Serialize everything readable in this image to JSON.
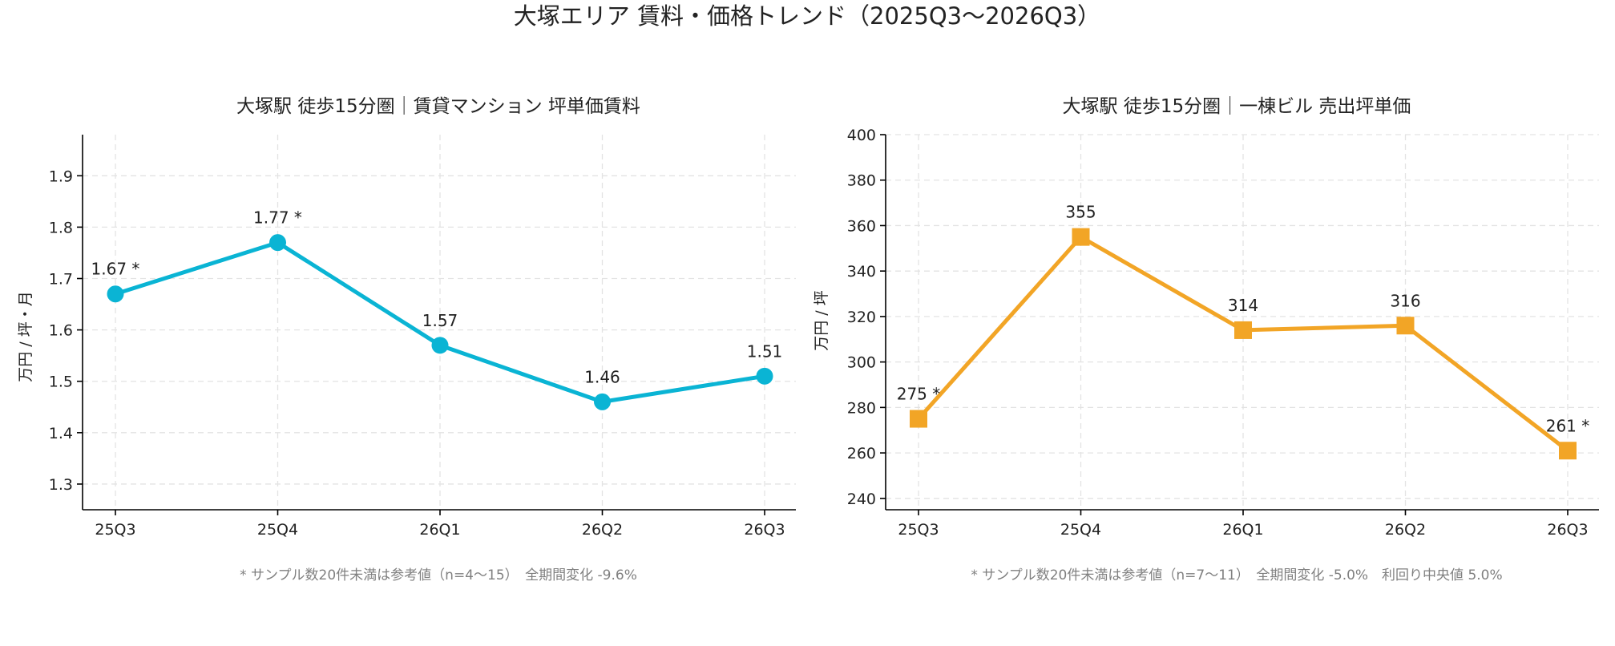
{
  "figure": {
    "title": "大塚エリア 賃料・価格トレンド（2025Q3〜2026Q3）"
  },
  "chart_data": [
    {
      "type": "line",
      "title": "大塚駅 徒歩15分圏｜賃貸マンション 坪単価賃料",
      "xlabel": "",
      "ylabel": "万円 / 坪・月",
      "categories": [
        "25Q3",
        "25Q4",
        "26Q1",
        "26Q2",
        "26Q3"
      ],
      "series": [
        {
          "values": [
            1.67,
            1.77,
            1.57,
            1.46,
            1.51
          ],
          "labels": [
            "1.67 *",
            "1.77 *",
            "1.57",
            "1.46",
            "1.51"
          ],
          "color": "#0ab4d4",
          "marker": "circle"
        }
      ],
      "ylim": [
        1.25,
        1.98
      ],
      "yticks": [
        1.3,
        1.4,
        1.5,
        1.6,
        1.7,
        1.8,
        1.9
      ],
      "ytick_labels": [
        "1.3",
        "1.4",
        "1.5",
        "1.6",
        "1.7",
        "1.8",
        "1.9"
      ],
      "grid": true,
      "note": "* サンプル数20件未満は参考値（n=4〜15）　全期間変化 -9.6%"
    },
    {
      "type": "line",
      "title": "大塚駅 徒歩15分圏｜一棟ビル 売出坪単価",
      "xlabel": "",
      "ylabel": "万円 / 坪",
      "categories": [
        "25Q3",
        "25Q4",
        "26Q1",
        "26Q2",
        "26Q3"
      ],
      "series": [
        {
          "values": [
            275,
            355,
            314,
            316,
            261
          ],
          "labels": [
            "275 *",
            "355",
            "314",
            "316",
            "261 *"
          ],
          "color": "#f2a526",
          "marker": "square"
        }
      ],
      "ylim": [
        235,
        400
      ],
      "yticks": [
        240,
        260,
        280,
        300,
        320,
        340,
        360,
        380,
        400
      ],
      "ytick_labels": [
        "240",
        "260",
        "280",
        "300",
        "320",
        "340",
        "360",
        "380",
        "400"
      ],
      "grid": true,
      "note": "* サンプル数20件未満は参考値（n=7〜11）　全期間変化 -5.0%　利回り中央値 5.0%"
    }
  ]
}
